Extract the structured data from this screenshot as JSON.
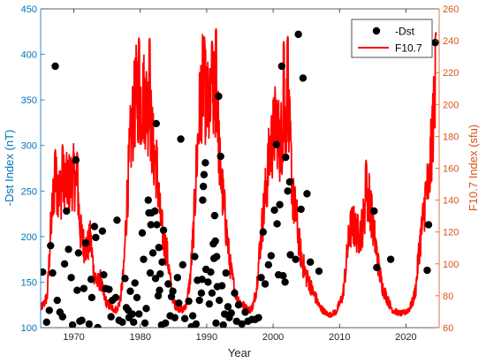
{
  "colors": {
    "left_axis": "#0072BD",
    "right_axis": "#D95319",
    "series_dst": "#000000",
    "series_f107": "#FF0000",
    "axis_black": "#262626"
  },
  "chart_data": {
    "type": "scatter+line",
    "xlabel": "Year",
    "ylabel_left": "-Dst Index (nT)",
    "ylabel_right": "F10.7 Index (sfu)",
    "xlim": [
      1965,
      2025
    ],
    "ylim_left": [
      100,
      450
    ],
    "ylim_right": [
      60,
      260
    ],
    "xticks": [
      1970,
      1980,
      1990,
      2000,
      2010,
      2020
    ],
    "xtick_labels": [
      "1970",
      "1980",
      "1990",
      "2000",
      "2010",
      "2020"
    ],
    "yticks_left": [
      100,
      150,
      200,
      250,
      300,
      350,
      400,
      450
    ],
    "ytick_labels_left": [
      "100",
      "150",
      "200",
      "250",
      "300",
      "350",
      "400",
      "450"
    ],
    "yticks_right": [
      60,
      80,
      100,
      120,
      140,
      160,
      180,
      200,
      220,
      240,
      260
    ],
    "ytick_labels_right": [
      "60",
      "80",
      "100",
      "120",
      "140",
      "160",
      "180",
      "200",
      "220",
      "240",
      "260"
    ],
    "legend": {
      "position": "top-right",
      "entries": [
        "-Dst",
        "F10.7"
      ]
    },
    "grid": false,
    "series": [
      {
        "name": "-Dst",
        "kind": "scatter",
        "axis": "left",
        "points": [
          [
            1965.3,
            161
          ],
          [
            1965.9,
            106
          ],
          [
            1966.3,
            119
          ],
          [
            1966.5,
            190
          ],
          [
            1966.8,
            160
          ],
          [
            1967.2,
            387
          ],
          [
            1967.5,
            130
          ],
          [
            1967.9,
            117
          ],
          [
            1968.3,
            112
          ],
          [
            1968.6,
            170
          ],
          [
            1968.9,
            228
          ],
          [
            1969.2,
            186
          ],
          [
            1969.6,
            155
          ],
          [
            1969.8,
            103
          ],
          [
            1970.3,
            284
          ],
          [
            1970.5,
            141
          ],
          [
            1970.7,
            182
          ],
          [
            1970.9,
            107
          ],
          [
            1971.2,
            108
          ],
          [
            1971.5,
            143
          ],
          [
            1971.8,
            193
          ],
          [
            1972.3,
            104
          ],
          [
            1972.6,
            153
          ],
          [
            1972.7,
            133
          ],
          [
            1973.1,
            211
          ],
          [
            1973.3,
            199
          ],
          [
            1973.6,
            100
          ],
          [
            1974.3,
            206
          ],
          [
            1974.5,
            158
          ],
          [
            1974.8,
            143
          ],
          [
            1975.3,
            142
          ],
          [
            1975.6,
            112
          ],
          [
            1975.8,
            130
          ],
          [
            1976.3,
            133
          ],
          [
            1976.5,
            218
          ],
          [
            1976.8,
            108
          ],
          [
            1977.3,
            106
          ],
          [
            1977.7,
            154
          ],
          [
            1977.9,
            122
          ],
          [
            1978.2,
            119
          ],
          [
            1978.3,
            111
          ],
          [
            1978.5,
            140
          ],
          [
            1978.8,
            115
          ],
          [
            1979.0,
            106
          ],
          [
            1979.2,
            149
          ],
          [
            1979.5,
            133
          ],
          [
            1979.8,
            115
          ],
          [
            1980.3,
            204
          ],
          [
            1980.5,
            175
          ],
          [
            1980.7,
            105
          ],
          [
            1980.9,
            121
          ],
          [
            1981.2,
            240
          ],
          [
            1981.3,
            226
          ],
          [
            1981.5,
            160
          ],
          [
            1981.6,
            213
          ],
          [
            1981.7,
            226
          ],
          [
            1981.9,
            182
          ],
          [
            1982.2,
            228
          ],
          [
            1982.3,
            154
          ],
          [
            1982.4,
            324
          ],
          [
            1982.5,
            213
          ],
          [
            1982.7,
            135
          ],
          [
            1982.8,
            188
          ],
          [
            1982.9,
            141
          ],
          [
            1983.0,
            159
          ],
          [
            1983.2,
            103
          ],
          [
            1983.3,
            172
          ],
          [
            1983.5,
            207
          ],
          [
            1983.8,
            105
          ],
          [
            1984.2,
            148
          ],
          [
            1984.5,
            113
          ],
          [
            1984.7,
            134
          ],
          [
            1984.9,
            140
          ],
          [
            1985.2,
            111
          ],
          [
            1985.6,
            155
          ],
          [
            1985.8,
            127
          ],
          [
            1986.1,
            307
          ],
          [
            1986.4,
            169
          ],
          [
            1986.7,
            110
          ],
          [
            1987.3,
            129
          ],
          [
            1987.7,
            101
          ],
          [
            1987.9,
            113
          ],
          [
            1988.2,
            178
          ],
          [
            1988.4,
            104
          ],
          [
            1988.6,
            152
          ],
          [
            1988.9,
            130
          ],
          [
            1989.2,
            138
          ],
          [
            1989.3,
            153
          ],
          [
            1989.4,
            240
          ],
          [
            1989.5,
            255
          ],
          [
            1989.6,
            268
          ],
          [
            1989.8,
            281
          ],
          [
            1989.9,
            164
          ],
          [
            1990.2,
            150
          ],
          [
            1990.4,
            126
          ],
          [
            1990.6,
            161
          ],
          [
            1990.8,
            138
          ],
          [
            1991.0,
            192
          ],
          [
            1991.1,
            176
          ],
          [
            1991.2,
            223
          ],
          [
            1991.3,
            195
          ],
          [
            1991.4,
            105
          ],
          [
            1991.5,
            178
          ],
          [
            1991.6,
            145
          ],
          [
            1991.8,
            354
          ],
          [
            1991.9,
            130
          ],
          [
            1992.1,
            288
          ],
          [
            1992.3,
            146
          ],
          [
            1992.5,
            103
          ],
          [
            1992.7,
            115
          ],
          [
            1992.9,
            160
          ],
          [
            1993.2,
            123
          ],
          [
            1993.4,
            111
          ],
          [
            1993.7,
            116
          ],
          [
            1994.2,
            138
          ],
          [
            1994.5,
            107
          ],
          [
            1994.8,
            125
          ],
          [
            1995.3,
            104
          ],
          [
            1995.8,
            117
          ],
          [
            1996.2,
            107
          ],
          [
            1996.8,
            109
          ],
          [
            1997.3,
            109
          ],
          [
            1997.8,
            111
          ],
          [
            1998.2,
            155
          ],
          [
            1998.5,
            205
          ],
          [
            1998.8,
            148
          ],
          [
            1999.3,
            169
          ],
          [
            1999.7,
            179
          ],
          [
            2000.2,
            229
          ],
          [
            2000.5,
            301
          ],
          [
            2000.6,
            214
          ],
          [
            2000.8,
            158
          ],
          [
            2001.0,
            235
          ],
          [
            2001.3,
            387
          ],
          [
            2001.5,
            157
          ],
          [
            2001.8,
            150
          ],
          [
            2001.9,
            287
          ],
          [
            2002.2,
            250
          ],
          [
            2002.5,
            260
          ],
          [
            2002.6,
            180
          ],
          [
            2003.4,
            175
          ],
          [
            2003.8,
            422
          ],
          [
            2004.2,
            230
          ],
          [
            2004.5,
            374
          ],
          [
            2005.1,
            247
          ],
          [
            2005.6,
            172
          ],
          [
            2006.9,
            162
          ],
          [
            2015.2,
            228
          ],
          [
            2015.6,
            166
          ],
          [
            2017.7,
            175
          ],
          [
            2023.2,
            163
          ],
          [
            2023.4,
            213
          ],
          [
            2024.4,
            413
          ]
        ]
      },
      {
        "name": "F10.7",
        "kind": "line",
        "axis": "right",
        "keypoints": [
          [
            1965.0,
            72
          ],
          [
            1965.5,
            75
          ],
          [
            1966.0,
            80
          ],
          [
            1966.5,
            120
          ],
          [
            1967.0,
            148
          ],
          [
            1967.5,
            150
          ],
          [
            1968.0,
            145
          ],
          [
            1968.5,
            152
          ],
          [
            1969.0,
            150
          ],
          [
            1969.5,
            152
          ],
          [
            1970.0,
            155
          ],
          [
            1970.5,
            148
          ],
          [
            1971.0,
            120
          ],
          [
            1971.5,
            112
          ],
          [
            1972.0,
            110
          ],
          [
            1972.5,
            116
          ],
          [
            1973.0,
            95
          ],
          [
            1973.5,
            88
          ],
          [
            1974.0,
            90
          ],
          [
            1974.5,
            80
          ],
          [
            1975.0,
            75
          ],
          [
            1975.5,
            73
          ],
          [
            1976.0,
            72
          ],
          [
            1976.5,
            71
          ],
          [
            1977.0,
            78
          ],
          [
            1977.5,
            95
          ],
          [
            1978.0,
            140
          ],
          [
            1978.5,
            175
          ],
          [
            1979.0,
            195
          ],
          [
            1979.5,
            210
          ],
          [
            1980.0,
            200
          ],
          [
            1980.5,
            205
          ],
          [
            1981.0,
            200
          ],
          [
            1981.5,
            190
          ],
          [
            1982.0,
            170
          ],
          [
            1982.5,
            160
          ],
          [
            1983.0,
            130
          ],
          [
            1983.5,
            115
          ],
          [
            1984.0,
            108
          ],
          [
            1984.5,
            90
          ],
          [
            1985.0,
            76
          ],
          [
            1985.5,
            73
          ],
          [
            1986.0,
            72
          ],
          [
            1986.5,
            71
          ],
          [
            1987.0,
            76
          ],
          [
            1987.5,
            90
          ],
          [
            1988.0,
            120
          ],
          [
            1988.5,
            165
          ],
          [
            1989.0,
            200
          ],
          [
            1989.5,
            215
          ],
          [
            1990.0,
            200
          ],
          [
            1990.5,
            195
          ],
          [
            1991.0,
            205
          ],
          [
            1991.5,
            210
          ],
          [
            1992.0,
            160
          ],
          [
            1992.5,
            140
          ],
          [
            1993.0,
            120
          ],
          [
            1993.5,
            100
          ],
          [
            1994.0,
            88
          ],
          [
            1994.5,
            80
          ],
          [
            1995.0,
            76
          ],
          [
            1995.5,
            74
          ],
          [
            1996.0,
            72
          ],
          [
            1996.5,
            71
          ],
          [
            1997.0,
            74
          ],
          [
            1997.5,
            85
          ],
          [
            1998.0,
            110
          ],
          [
            1998.5,
            130
          ],
          [
            1999.0,
            150
          ],
          [
            1999.5,
            170
          ],
          [
            2000.0,
            180
          ],
          [
            2000.5,
            190
          ],
          [
            2001.0,
            175
          ],
          [
            2001.5,
            185
          ],
          [
            2002.0,
            195
          ],
          [
            2002.5,
            180
          ],
          [
            2003.0,
            140
          ],
          [
            2003.5,
            130
          ],
          [
            2004.0,
            110
          ],
          [
            2004.5,
            100
          ],
          [
            2005.0,
            92
          ],
          [
            2005.5,
            88
          ],
          [
            2006.0,
            82
          ],
          [
            2006.5,
            78
          ],
          [
            2007.0,
            73
          ],
          [
            2007.5,
            71
          ],
          [
            2008.0,
            69
          ],
          [
            2008.5,
            68
          ],
          [
            2009.0,
            69
          ],
          [
            2009.5,
            70
          ],
          [
            2010.0,
            75
          ],
          [
            2010.5,
            80
          ],
          [
            2011.0,
            100
          ],
          [
            2011.5,
            120
          ],
          [
            2012.0,
            125
          ],
          [
            2012.5,
            120
          ],
          [
            2013.0,
            118
          ],
          [
            2013.5,
            125
          ],
          [
            2014.0,
            140
          ],
          [
            2014.5,
            142
          ],
          [
            2015.0,
            125
          ],
          [
            2015.5,
            110
          ],
          [
            2016.0,
            95
          ],
          [
            2016.5,
            85
          ],
          [
            2017.0,
            80
          ],
          [
            2017.5,
            75
          ],
          [
            2018.0,
            71
          ],
          [
            2018.5,
            70
          ],
          [
            2019.0,
            69
          ],
          [
            2019.5,
            69
          ],
          [
            2020.0,
            70
          ],
          [
            2020.5,
            72
          ],
          [
            2021.0,
            76
          ],
          [
            2021.5,
            85
          ],
          [
            2022.0,
            110
          ],
          [
            2022.5,
            125
          ],
          [
            2023.0,
            145
          ],
          [
            2023.5,
            150
          ],
          [
            2024.0,
            185
          ],
          [
            2024.5,
            205
          ]
        ],
        "peaks": [
          [
            1967.2,
            172
          ],
          [
            1968.3,
            175
          ],
          [
            1970.5,
            170
          ],
          [
            1979.8,
            242
          ],
          [
            1981.4,
            242
          ],
          [
            1989.6,
            243
          ],
          [
            1990.8,
            240
          ],
          [
            1991.4,
            248
          ],
          [
            2001.6,
            240
          ],
          [
            2002.2,
            243
          ],
          [
            2014.0,
            165
          ],
          [
            2024.5,
            245
          ]
        ]
      }
    ]
  }
}
